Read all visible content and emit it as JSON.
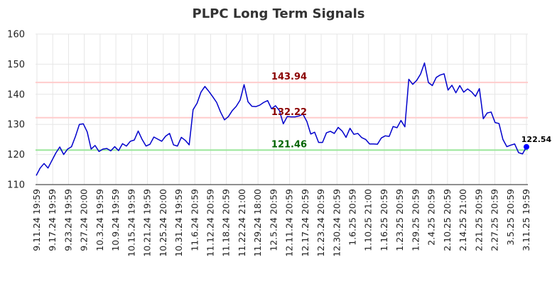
{
  "chart_data": {
    "type": "line",
    "title": "PLPC Long Term Signals",
    "xlabel": "",
    "ylabel": "",
    "ylim": [
      110,
      160
    ],
    "yticks": [
      "110",
      "120",
      "130",
      "140",
      "150",
      "160"
    ],
    "grid": true,
    "x_tick_labels": [
      "9.11.24 19:59",
      "9.17.24 19:59",
      "9.23.24 19:59",
      "9.27.24 20:00",
      "10.3.24 19:59",
      "10.9.24 19:59",
      "10.15.24 19:59",
      "10.21.24 19:59",
      "10.25.24 20:00",
      "10.31.24 19:59",
      "11.6.24 20:59",
      "11.12.24 20:59",
      "11.18.24 20:59",
      "11.22.24 21:00",
      "11.29.24 18:00",
      "12.5.24 20:59",
      "12.11.24 20:59",
      "12.17.24 20:59",
      "12.23.24 20:59",
      "12.30.24 20:59",
      "1.6.25 20:59",
      "1.10.25 21:00",
      "1.16.25 20:59",
      "1.23.25 20:59",
      "1.29.25 20:59",
      "2.4.25 20:59",
      "2.10.25 20:59",
      "2.14.25 21:00",
      "2.21.25 20:59",
      "2.27.25 20:59",
      "3.5.25 20:59",
      "3.11.25 19:59"
    ],
    "series": [
      {
        "color": "#0000cc",
        "values": [
          113,
          115.5,
          117,
          115.5,
          118,
          120.5,
          122.5,
          120,
          121.8,
          122.6,
          126,
          130,
          130.2,
          127.5,
          121.8,
          123,
          121,
          121.8,
          122,
          121.2,
          122.6,
          121.3,
          123.6,
          122.8,
          124.4,
          124.8,
          127.8,
          125,
          122.8,
          123.4,
          125.8,
          125.1,
          124.4,
          126.1,
          127,
          123.2,
          122.8,
          125.7,
          124.7,
          123.2,
          134.9,
          137,
          140.7,
          142.6,
          141,
          139.2,
          137.3,
          134.1,
          131.5,
          132.6,
          134.6,
          136,
          138.1,
          143.2,
          137.5,
          136,
          135.9,
          136.4,
          137.3,
          137.9,
          135.2,
          136.2,
          134.6,
          130.2,
          132.6,
          132.5,
          132.5,
          132.8,
          133.4,
          131,
          126.8,
          127.4,
          124,
          124,
          127.2,
          127.7,
          127,
          129,
          127.8,
          125.7,
          128.7,
          126.7,
          127,
          125.6,
          125,
          123.5,
          123.5,
          123.4,
          125.5,
          126.2,
          126,
          129.3,
          128.9,
          131.3,
          129.2,
          145,
          143.3,
          144.6,
          146.7,
          150.4,
          143.9,
          142.9,
          145.6,
          146.4,
          146.8,
          141.4,
          143,
          140.5,
          142.9,
          140.7,
          141.8,
          140.8,
          139.3,
          141.9,
          131.9,
          133.8,
          134.1,
          130.6,
          130.3,
          125,
          122.6,
          123.1,
          123.5,
          120.6,
          120.2,
          122.54
        ]
      }
    ],
    "levels": [
      {
        "value": 143.94,
        "label": "143.94",
        "line_color": "#ffcccc",
        "text_color": "#8b0000"
      },
      {
        "value": 132.22,
        "label": "132.22",
        "line_color": "#ffcccc",
        "text_color": "#8b0000"
      },
      {
        "value": 121.46,
        "label": "121.46",
        "line_color": "#99e699",
        "text_color": "#006400"
      }
    ],
    "last_value_label": "122.54",
    "last_marker_color": "#0000ff"
  }
}
